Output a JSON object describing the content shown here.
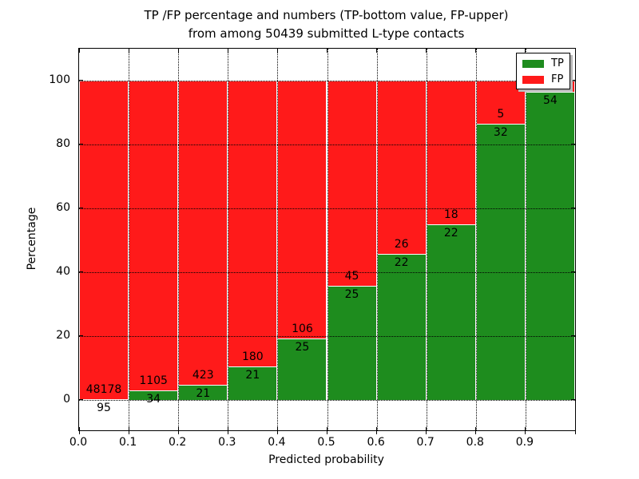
{
  "chart_data": {
    "type": "bar",
    "stacked": true,
    "title_line1": "TP /FP percentage and numbers (TP-bottom value, FP-upper)",
    "title_line2": "from among 50439 submitted L-type contacts",
    "xlabel": "Predicted probability",
    "ylabel": "Percentage",
    "xlim": [
      0.0,
      1.0
    ],
    "ylim": [
      -9.6,
      110.0
    ],
    "grid": "dotted, drawn above bars",
    "x_tick_labels": [
      "0.0",
      "0.1",
      "0.2",
      "0.3",
      "0.4",
      "0.5",
      "0.6",
      "0.7",
      "0.8",
      "0.9"
    ],
    "y_tick_values": [
      0,
      20,
      40,
      60,
      80,
      100
    ],
    "y_tick_labels": [
      "0",
      "20",
      "40",
      "60",
      "80",
      "100"
    ],
    "colors": {
      "tp": "#1e8c1e",
      "fp": "#ff1a1a",
      "bar_edge": "#ffffff",
      "grid": "#000000",
      "background": "#ffffff"
    },
    "legend": {
      "position": "upper-right",
      "entries": [
        {
          "label": "TP",
          "color": "#1e8c1e"
        },
        {
          "label": "FP",
          "color": "#ff1a1a"
        }
      ]
    },
    "bars": [
      {
        "bin_start": 0.0,
        "tp": 95,
        "fp": 48178,
        "tp_pct": 0.2,
        "tp_label": "95",
        "fp_label": "48178",
        "fp_label_visible": true
      },
      {
        "bin_start": 0.1,
        "tp": 34,
        "fp": 1105,
        "tp_pct": 3.0,
        "tp_label": "34",
        "fp_label": "1105",
        "fp_label_visible": true
      },
      {
        "bin_start": 0.2,
        "tp": 21,
        "fp": 423,
        "tp_pct": 4.7,
        "tp_label": "21",
        "fp_label": "423",
        "fp_label_visible": true
      },
      {
        "bin_start": 0.3,
        "tp": 21,
        "fp": 180,
        "tp_pct": 10.4,
        "tp_label": "21",
        "fp_label": "180",
        "fp_label_visible": true
      },
      {
        "bin_start": 0.4,
        "tp": 25,
        "fp": 106,
        "tp_pct": 19.1,
        "tp_label": "25",
        "fp_label": "106",
        "fp_label_visible": true
      },
      {
        "bin_start": 0.5,
        "tp": 25,
        "fp": 45,
        "tp_pct": 35.7,
        "tp_label": "25",
        "fp_label": "45",
        "fp_label_visible": true
      },
      {
        "bin_start": 0.6,
        "tp": 22,
        "fp": 26,
        "tp_pct": 45.8,
        "tp_label": "22",
        "fp_label": "26",
        "fp_label_visible": true
      },
      {
        "bin_start": 0.7,
        "tp": 22,
        "fp": 18,
        "tp_pct": 55.0,
        "tp_label": "22",
        "fp_label": "18",
        "fp_label_visible": true
      },
      {
        "bin_start": 0.8,
        "tp": 32,
        "fp": 5,
        "tp_pct": 86.5,
        "tp_label": "32",
        "fp_label": "5",
        "fp_label_visible": true
      },
      {
        "bin_start": 0.9,
        "tp": 54,
        "fp": null,
        "tp_pct": 96.4,
        "tp_label": "54",
        "fp_label": null,
        "fp_label_visible": false
      }
    ]
  }
}
